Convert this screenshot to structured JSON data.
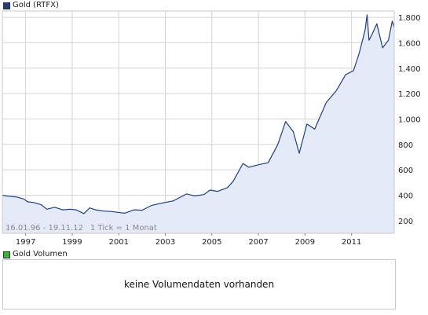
{
  "price_panel": {
    "legend_label": "Gold (RTFX)",
    "range_label": "16.01.96 - 19.11.12",
    "tick_label": "1 Tick = 1 Monat"
  },
  "volume_panel": {
    "legend_label": "Gold Volumen",
    "message": "keine Volumendaten vorhanden"
  },
  "colors": {
    "line": "#1f3f7a",
    "fill": "#e4eaf8",
    "grid": "#d4d4d4",
    "panel_bg": "#ffffff",
    "price_swatch": "#1f3f7a",
    "volume_swatch": "#3cb43c"
  },
  "chart_data": {
    "type": "area",
    "x_start": "1996-01",
    "x_end": "2012-11",
    "y_axis_position": "right",
    "ylim": [
      100,
      1850
    ],
    "grid": true,
    "xticks": [
      1997,
      1999,
      2001,
      2003,
      2005,
      2007,
      2009,
      2011
    ],
    "yticks": [
      {
        "value": 200,
        "label": "200"
      },
      {
        "value": 400,
        "label": "400"
      },
      {
        "value": 600,
        "label": "600"
      },
      {
        "value": 800,
        "label": "800"
      },
      {
        "value": 1000,
        "label": "1.000"
      },
      {
        "value": 1200,
        "label": "1.200"
      },
      {
        "value": 1400,
        "label": "1.400"
      },
      {
        "value": 1600,
        "label": "1.600"
      },
      {
        "value": 1800,
        "label": "1.800"
      }
    ],
    "series": [
      {
        "name": "Gold (RTFX)",
        "points": [
          [
            "1996-01",
            400
          ],
          [
            "1996-04",
            392
          ],
          [
            "1996-08",
            387
          ],
          [
            "1996-12",
            370
          ],
          [
            "1997-02",
            348
          ],
          [
            "1997-05",
            343
          ],
          [
            "1997-09",
            325
          ],
          [
            "1997-12",
            290
          ],
          [
            "1998-04",
            305
          ],
          [
            "1998-08",
            285
          ],
          [
            "1998-12",
            290
          ],
          [
            "1999-03",
            285
          ],
          [
            "1999-07",
            255
          ],
          [
            "1999-10",
            300
          ],
          [
            "2000-01",
            285
          ],
          [
            "2000-05",
            275
          ],
          [
            "2000-09",
            272
          ],
          [
            "2001-02",
            262
          ],
          [
            "2001-04",
            258
          ],
          [
            "2001-09",
            285
          ],
          [
            "2002-01",
            282
          ],
          [
            "2002-06",
            320
          ],
          [
            "2002-12",
            340
          ],
          [
            "2003-05",
            355
          ],
          [
            "2003-12",
            410
          ],
          [
            "2004-04",
            395
          ],
          [
            "2004-09",
            405
          ],
          [
            "2004-12",
            440
          ],
          [
            "2005-04",
            430
          ],
          [
            "2005-09",
            460
          ],
          [
            "2005-12",
            510
          ],
          [
            "2006-05",
            650
          ],
          [
            "2006-08",
            620
          ],
          [
            "2007-01",
            640
          ],
          [
            "2007-06",
            655
          ],
          [
            "2007-11",
            800
          ],
          [
            "2008-03",
            980
          ],
          [
            "2008-07",
            900
          ],
          [
            "2008-10",
            730
          ],
          [
            "2009-02",
            960
          ],
          [
            "2009-06",
            920
          ],
          [
            "2009-12",
            1130
          ],
          [
            "2010-05",
            1220
          ],
          [
            "2010-10",
            1350
          ],
          [
            "2011-02",
            1380
          ],
          [
            "2011-05",
            1520
          ],
          [
            "2011-08",
            1700
          ],
          [
            "2011-09",
            1820
          ],
          [
            "2011-10",
            1620
          ],
          [
            "2011-12",
            1680
          ],
          [
            "2012-02",
            1750
          ],
          [
            "2012-05",
            1560
          ],
          [
            "2012-08",
            1620
          ],
          [
            "2012-10",
            1770
          ],
          [
            "2012-11",
            1720
          ]
        ]
      }
    ]
  }
}
